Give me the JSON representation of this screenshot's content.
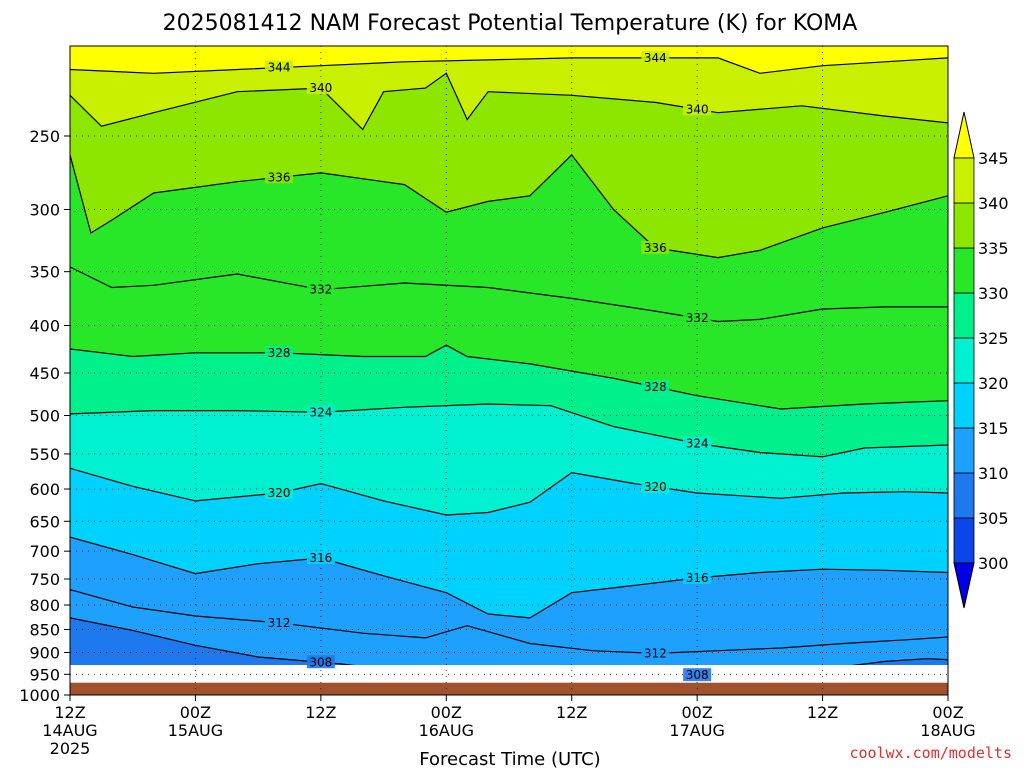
{
  "chart_data": {
    "type": "heatmap",
    "title": "2025081412 NAM Forecast Potential Temperature (K) for KOMA",
    "xlabel": "Forecast Time (UTC)",
    "ylabel": "",
    "credit": "coolwx.com/modelts",
    "x_ticks": [
      {
        "hour": 0,
        "line1": "12Z",
        "line2": "14AUG",
        "line3": "2025"
      },
      {
        "hour": 12,
        "line1": "00Z",
        "line2": "15AUG",
        "line3": ""
      },
      {
        "hour": 24,
        "line1": "12Z",
        "line2": "",
        "line3": ""
      },
      {
        "hour": 36,
        "line1": "00Z",
        "line2": "16AUG",
        "line3": ""
      },
      {
        "hour": 48,
        "line1": "12Z",
        "line2": "",
        "line3": ""
      },
      {
        "hour": 60,
        "line1": "00Z",
        "line2": "17AUG",
        "line3": ""
      },
      {
        "hour": 72,
        "line1": "12Z",
        "line2": "",
        "line3": ""
      },
      {
        "hour": 84,
        "line1": "00Z",
        "line2": "18AUG",
        "line3": ""
      }
    ],
    "xlim": [
      0,
      84
    ],
    "y_ticks": [
      250,
      300,
      350,
      400,
      450,
      500,
      550,
      600,
      650,
      700,
      750,
      800,
      850,
      900,
      950,
      1000
    ],
    "ylim_hpa": [
      200,
      1000
    ],
    "surface_hpa": 970,
    "grid": true,
    "colorbar": {
      "levels": [
        300,
        305,
        310,
        315,
        320,
        325,
        330,
        335,
        340,
        345
      ],
      "colors": [
        "#0000e6",
        "#0a46ea",
        "#1e78ee",
        "#1ea0ff",
        "#00d2ff",
        "#00f0d2",
        "#00f08c",
        "#28e628",
        "#8ce600",
        "#c8f000",
        "#ffff00"
      ],
      "placement": "right"
    },
    "ground_color": "#a0522d",
    "contours": [
      {
        "value": 344,
        "label": "344",
        "points": [
          [
            0,
            212
          ],
          [
            8,
            214
          ],
          [
            16,
            212
          ],
          [
            24,
            210
          ],
          [
            32,
            208
          ],
          [
            40,
            207
          ],
          [
            48,
            206
          ],
          [
            56,
            206
          ],
          [
            62,
            206
          ],
          [
            66,
            214
          ],
          [
            72,
            210
          ],
          [
            78,
            208
          ],
          [
            84,
            206
          ]
        ]
      },
      {
        "value": 340,
        "label": "340",
        "points": [
          [
            0,
            226
          ],
          [
            3,
            244
          ],
          [
            8,
            236
          ],
          [
            16,
            224
          ],
          [
            24,
            222
          ],
          [
            28,
            246
          ],
          [
            30,
            224
          ],
          [
            34,
            222
          ],
          [
            36,
            214
          ],
          [
            38,
            240
          ],
          [
            40,
            224
          ],
          [
            48,
            226
          ],
          [
            56,
            230
          ],
          [
            62,
            236
          ],
          [
            70,
            232
          ],
          [
            78,
            238
          ],
          [
            84,
            242
          ]
        ]
      },
      {
        "value": 336,
        "label": "336",
        "points": [
          [
            0,
            262
          ],
          [
            2,
            318
          ],
          [
            4,
            308
          ],
          [
            8,
            288
          ],
          [
            16,
            280
          ],
          [
            24,
            274
          ],
          [
            32,
            282
          ],
          [
            36,
            302
          ],
          [
            40,
            294
          ],
          [
            44,
            290
          ],
          [
            48,
            262
          ],
          [
            52,
            300
          ],
          [
            56,
            330
          ],
          [
            62,
            338
          ],
          [
            66,
            332
          ],
          [
            72,
            314
          ],
          [
            78,
            302
          ],
          [
            84,
            290
          ]
        ]
      },
      {
        "value": 332,
        "label": "332",
        "points": [
          [
            0,
            346
          ],
          [
            4,
            364
          ],
          [
            8,
            362
          ],
          [
            16,
            352
          ],
          [
            24,
            366
          ],
          [
            32,
            360
          ],
          [
            40,
            364
          ],
          [
            48,
            374
          ],
          [
            56,
            386
          ],
          [
            62,
            396
          ],
          [
            66,
            394
          ],
          [
            72,
            384
          ],
          [
            78,
            382
          ],
          [
            84,
            382
          ]
        ]
      },
      {
        "value": 328,
        "label": "328",
        "points": [
          [
            0,
            424
          ],
          [
            6,
            432
          ],
          [
            12,
            428
          ],
          [
            20,
            428
          ],
          [
            28,
            432
          ],
          [
            34,
            432
          ],
          [
            36,
            420
          ],
          [
            38,
            432
          ],
          [
            44,
            440
          ],
          [
            52,
            456
          ],
          [
            60,
            476
          ],
          [
            68,
            492
          ],
          [
            76,
            486
          ],
          [
            84,
            482
          ]
        ]
      },
      {
        "value": 324,
        "label": "324",
        "points": [
          [
            0,
            498
          ],
          [
            8,
            494
          ],
          [
            16,
            494
          ],
          [
            24,
            496
          ],
          [
            32,
            490
          ],
          [
            40,
            486
          ],
          [
            46,
            488
          ],
          [
            52,
            514
          ],
          [
            60,
            536
          ],
          [
            66,
            548
          ],
          [
            72,
            554
          ],
          [
            76,
            542
          ],
          [
            84,
            538
          ]
        ]
      },
      {
        "value": 320,
        "label": "320",
        "points": [
          [
            0,
            570
          ],
          [
            6,
            596
          ],
          [
            12,
            618
          ],
          [
            20,
            606
          ],
          [
            24,
            592
          ],
          [
            30,
            618
          ],
          [
            36,
            640
          ],
          [
            40,
            636
          ],
          [
            44,
            620
          ],
          [
            48,
            576
          ],
          [
            54,
            592
          ],
          [
            60,
            606
          ],
          [
            68,
            614
          ],
          [
            74,
            606
          ],
          [
            80,
            604
          ],
          [
            84,
            606
          ]
        ]
      },
      {
        "value": 316,
        "label": "316",
        "points": [
          [
            0,
            676
          ],
          [
            6,
            706
          ],
          [
            12,
            740
          ],
          [
            18,
            722
          ],
          [
            24,
            712
          ],
          [
            30,
            744
          ],
          [
            36,
            776
          ],
          [
            40,
            818
          ],
          [
            44,
            826
          ],
          [
            48,
            776
          ],
          [
            54,
            762
          ],
          [
            60,
            748
          ],
          [
            66,
            738
          ],
          [
            72,
            732
          ],
          [
            78,
            734
          ],
          [
            84,
            738
          ]
        ]
      },
      {
        "value": 312,
        "label": "312",
        "points": [
          [
            0,
            770
          ],
          [
            6,
            804
          ],
          [
            12,
            822
          ],
          [
            20,
            836
          ],
          [
            28,
            858
          ],
          [
            34,
            868
          ],
          [
            38,
            842
          ],
          [
            44,
            880
          ],
          [
            50,
            896
          ],
          [
            56,
            902
          ],
          [
            62,
            896
          ],
          [
            68,
            890
          ],
          [
            74,
            880
          ],
          [
            80,
            872
          ],
          [
            84,
            866
          ]
        ]
      },
      {
        "value": 308,
        "label": "308",
        "points": [
          [
            0,
            826
          ],
          [
            6,
            852
          ],
          [
            12,
            884
          ],
          [
            18,
            910
          ],
          [
            26,
            926
          ],
          [
            32,
            944
          ],
          [
            36,
            946
          ],
          [
            40,
            942
          ],
          [
            46,
            948
          ],
          [
            52,
            952
          ],
          [
            60,
            952
          ],
          [
            66,
            950
          ],
          [
            72,
            938
          ],
          [
            78,
            920
          ],
          [
            82,
            914
          ],
          [
            84,
            916
          ]
        ]
      }
    ]
  }
}
